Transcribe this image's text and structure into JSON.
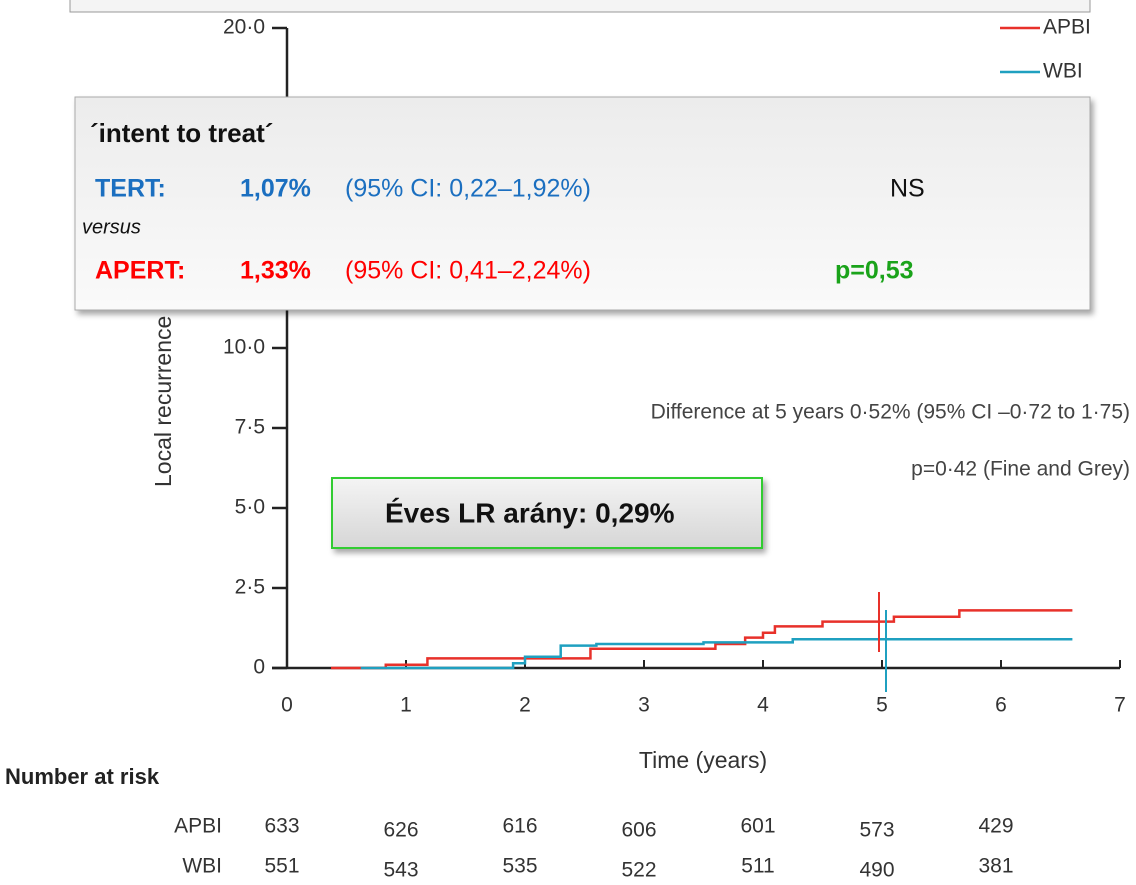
{
  "chart_data": {
    "type": "line",
    "step": true,
    "y_label": "Local recurrence (%)",
    "x_label": "Time (years)",
    "xlim": [
      0,
      7
    ],
    "xticks": [
      0,
      1,
      2,
      3,
      4,
      5,
      6,
      7
    ],
    "ylim": [
      0,
      20
    ],
    "yticks": [
      0,
      {
        "value": 2.5,
        "label": "2·5"
      },
      {
        "value": 5,
        "label": "5·0"
      },
      {
        "value": 7.5,
        "label": "7·5"
      },
      {
        "value": 10,
        "label": "10·0"
      },
      {
        "value": 20,
        "label": "20·0"
      }
    ],
    "series": [
      {
        "name": "APBI",
        "color": "#e8312a",
        "x": [
          0.37,
          0.83,
          1.18,
          2.55,
          3.6,
          3.85,
          4.0,
          4.1,
          4.5,
          5.1,
          5.65,
          6.6
        ],
        "values": [
          0,
          0.1,
          0.3,
          0.6,
          0.75,
          0.95,
          1.1,
          1.3,
          1.45,
          1.6,
          1.8,
          1.8
        ]
      },
      {
        "name": "WBI",
        "color": "#1fa0c0",
        "x": [
          0.62,
          1.9,
          2.0,
          2.3,
          2.6,
          3.5,
          4.25,
          6.6
        ],
        "values": [
          0,
          0.15,
          0.35,
          0.7,
          0.75,
          0.8,
          0.9,
          0.9
        ]
      }
    ],
    "annotations": [
      "Difference at 5 years 0·52% (95% CI –0·72 to 1·75)",
      "p=0·42 (Fine and Grey)"
    ],
    "risk_table": {
      "title": "Number at risk",
      "rows": [
        {
          "name": "APBI",
          "values": [
            633,
            626,
            616,
            606,
            601,
            573,
            429
          ]
        },
        {
          "name": "WBI",
          "values": [
            551,
            543,
            535,
            522,
            511,
            490,
            381
          ]
        }
      ]
    }
  },
  "callout": {
    "heading": "´intent to treat´",
    "rows": [
      {
        "label": "TERT:",
        "value": "1,07%",
        "ci": "(95% CI: 0,22–1,92%)",
        "note": "NS"
      },
      {
        "label": "APERT:",
        "value": "1,33%",
        "ci": "(95% CI: 0,41–2,24%)",
        "note": "p=0,53"
      }
    ],
    "between": "versus"
  },
  "badge": "Éves LR arány: 0,29%"
}
